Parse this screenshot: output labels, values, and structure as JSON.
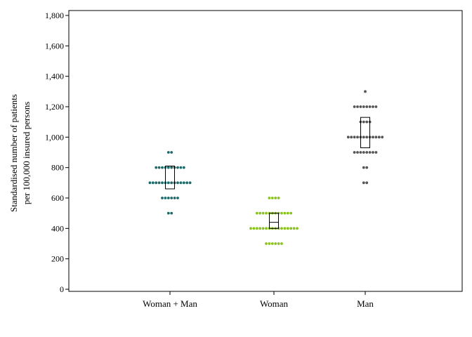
{
  "chart_data": {
    "type": "scatter",
    "subtype": "dot-strip-with-box",
    "title": "",
    "xlabel": "",
    "ylabel_lines": [
      "Standardised number of patients",
      "per 100,000 insured persons"
    ],
    "ylim": [
      0,
      1800
    ],
    "yticks": [
      0,
      200,
      400,
      600,
      800,
      1000,
      1200,
      1400,
      1600,
      1800
    ],
    "ytick_labels": [
      "0",
      "200",
      "400",
      "600",
      "800",
      "1,000",
      "1,200",
      "1,400",
      "1,600",
      "1,800"
    ],
    "grid": false,
    "legend": "none",
    "categories": [
      "Woman + Man",
      "Woman",
      "Man"
    ],
    "series": [
      {
        "category": "Woman + Man",
        "color": "#1f6b6b",
        "dot_rows": [
          {
            "value": 900,
            "count": 2
          },
          {
            "value": 800,
            "count": 10
          },
          {
            "value": 700,
            "count": 14
          },
          {
            "value": 600,
            "count": 6
          },
          {
            "value": 500,
            "count": 2
          }
        ],
        "box": {
          "low": 660,
          "high": 810
        }
      },
      {
        "category": "Woman",
        "color": "#8cc21f",
        "dot_rows": [
          {
            "value": 600,
            "count": 4
          },
          {
            "value": 500,
            "count": 12
          },
          {
            "value": 400,
            "count": 16
          },
          {
            "value": 300,
            "count": 6
          }
        ],
        "box": {
          "low": 400,
          "high": 500,
          "median": 440
        }
      },
      {
        "category": "Man",
        "color": "#555555",
        "dot_rows": [
          {
            "value": 1300,
            "count": 1
          },
          {
            "value": 1200,
            "count": 8
          },
          {
            "value": 1100,
            "count": 4
          },
          {
            "value": 1000,
            "count": 12
          },
          {
            "value": 900,
            "count": 8
          },
          {
            "value": 800,
            "count": 2
          },
          {
            "value": 700,
            "count": 2
          }
        ],
        "box": {
          "low": 930,
          "high": 1130
        }
      }
    ]
  }
}
